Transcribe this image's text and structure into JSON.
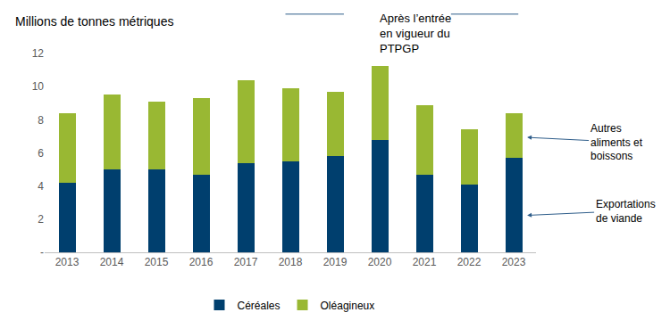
{
  "chart_data": {
    "type": "bar",
    "stacked": true,
    "y_label": "Millions de tonnes métriques",
    "categories": [
      "2013",
      "2014",
      "2015",
      "2016",
      "2017",
      "2018",
      "2019",
      "2020",
      "2021",
      "2022",
      "2023"
    ],
    "series": [
      {
        "name": "Céréales",
        "color": "#003f6e",
        "values": [
          4.2,
          5.0,
          5.0,
          4.7,
          5.4,
          5.5,
          5.8,
          6.8,
          4.7,
          4.1,
          5.7
        ]
      },
      {
        "name": "Oléagineux",
        "color": "#99b833",
        "values": [
          4.2,
          4.5,
          4.1,
          4.6,
          5.0,
          4.4,
          3.9,
          4.45,
          4.2,
          3.3,
          2.7
        ]
      }
    ],
    "ylim": [
      0,
      12
    ],
    "yticks": [
      {
        "value": 0,
        "label": "-"
      },
      2,
      4,
      6,
      8,
      10,
      12
    ],
    "grid": false,
    "legend": "bottom",
    "annotations": [
      "Après l’entrée\nen vigueur du\nPTPGP",
      "Autres\naliments et\nboissons",
      "Exportations\nde viande"
    ]
  }
}
